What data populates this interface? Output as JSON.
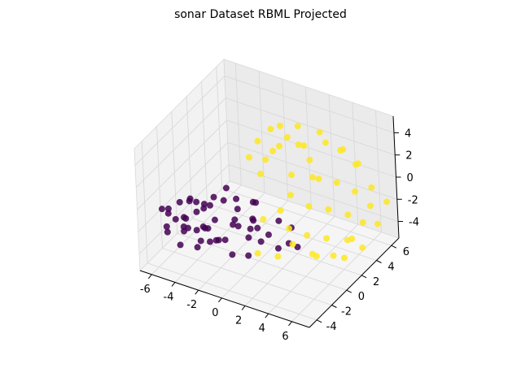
{
  "chart_data": {
    "type": "scatter",
    "projection": "3d",
    "title": "sonar Dataset RBML Projected",
    "xlabel": "",
    "ylabel": "",
    "zlabel": "",
    "xlim": [
      -7,
      7.5
    ],
    "ylim": [
      -5,
      7
    ],
    "zlim": [
      -5.5,
      5.5
    ],
    "x_ticks": [
      "-6",
      "-4",
      "-2",
      "0",
      "2",
      "4",
      "6"
    ],
    "y_ticks": [
      "-4",
      "-2",
      "0",
      "2",
      "4",
      "6"
    ],
    "z_ticks": [
      "-4",
      "-2",
      "0",
      "2",
      "4"
    ],
    "grid": true,
    "colors": {
      "class_0": "#440154",
      "class_1": "#fde725",
      "pane": "#f2f2f2",
      "grid": "#d9d9d9"
    },
    "series": [
      {
        "class": 0,
        "color": "#440154",
        "points": [
          [
            -6.2,
            -3.0,
            -1.0
          ],
          [
            -5.8,
            -2.8,
            -1.4
          ],
          [
            -5.5,
            -3.2,
            -0.6
          ],
          [
            -5.0,
            -2.0,
            -2.0
          ],
          [
            -4.8,
            -1.5,
            -0.8
          ],
          [
            -4.5,
            -2.5,
            -1.6
          ],
          [
            -4.2,
            -3.8,
            -3.0
          ],
          [
            -4.0,
            -1.8,
            -0.4
          ],
          [
            -3.8,
            -2.2,
            -2.6
          ],
          [
            -3.5,
            -0.8,
            -1.2
          ],
          [
            -3.2,
            -3.0,
            -0.2
          ],
          [
            -3.0,
            -1.0,
            -2.2
          ],
          [
            -2.8,
            -2.6,
            -1.8
          ],
          [
            -2.5,
            -0.5,
            -0.6
          ],
          [
            -2.2,
            -1.8,
            -3.2
          ],
          [
            -2.0,
            -3.4,
            -1.0
          ],
          [
            -1.8,
            0.2,
            -1.6
          ],
          [
            -1.5,
            -2.0,
            -2.8
          ],
          [
            -1.2,
            -0.8,
            0.2
          ],
          [
            -1.0,
            -1.4,
            -1.2
          ],
          [
            -0.8,
            0.6,
            -2.4
          ],
          [
            -0.5,
            -2.4,
            -0.8
          ],
          [
            -0.2,
            -0.2,
            -1.8
          ],
          [
            0.0,
            -1.2,
            -2.6
          ],
          [
            -5.2,
            -0.8,
            -1.2
          ],
          [
            -4.6,
            0.0,
            -2.4
          ],
          [
            -3.6,
            -3.6,
            -1.4
          ],
          [
            -2.6,
            -1.6,
            0.4
          ],
          [
            -1.6,
            -3.0,
            -2.2
          ],
          [
            -0.6,
            0.8,
            -1.0
          ],
          [
            0.4,
            -0.6,
            -2.0
          ],
          [
            0.8,
            0.2,
            -3.0
          ],
          [
            1.2,
            -1.4,
            -2.4
          ],
          [
            1.6,
            0.4,
            -1.6
          ],
          [
            2.0,
            -0.4,
            -3.4
          ],
          [
            -6.0,
            -1.6,
            -2.8
          ],
          [
            -5.4,
            -3.6,
            -2.4
          ],
          [
            -4.4,
            -0.2,
            -1.8
          ],
          [
            -3.4,
            -2.8,
            -3.6
          ],
          [
            -2.4,
            -3.8,
            -2.0
          ],
          [
            -1.4,
            -0.4,
            -2.6
          ],
          [
            -0.4,
            -2.8,
            -3.2
          ],
          [
            0.6,
            -1.8,
            -1.2
          ],
          [
            1.0,
            -2.8,
            -2.8
          ],
          [
            -2.9,
            0.5,
            -0.3
          ],
          [
            -3.9,
            -1.2,
            -3.0
          ],
          [
            -4.9,
            -2.6,
            -0.2
          ],
          [
            -1.1,
            1.2,
            -1.4
          ],
          [
            2.4,
            0.8,
            -2.2
          ],
          [
            2.8,
            -0.2,
            -2.8
          ],
          [
            3.0,
            0.6,
            -3.6
          ],
          [
            -6.4,
            -2.2,
            -3.2
          ],
          [
            -5.6,
            -1.2,
            -3.6
          ],
          [
            -4.1,
            -3.4,
            -2.0
          ],
          [
            -3.1,
            -1.6,
            -3.8
          ]
        ]
      },
      {
        "class": 1,
        "color": "#fde725",
        "points": [
          [
            -1.0,
            2.0,
            3.6
          ],
          [
            -0.5,
            3.0,
            4.2
          ],
          [
            0.0,
            2.4,
            2.8
          ],
          [
            0.5,
            3.6,
            3.4
          ],
          [
            1.0,
            1.8,
            4.0
          ],
          [
            1.5,
            4.2,
            2.6
          ],
          [
            2.0,
            2.8,
            3.8
          ],
          [
            2.5,
            3.4,
            2.2
          ],
          [
            3.0,
            4.8,
            3.0
          ],
          [
            3.5,
            2.2,
            1.8
          ],
          [
            4.0,
            5.2,
            2.4
          ],
          [
            4.5,
            3.8,
            0.6
          ],
          [
            5.0,
            5.6,
            1.2
          ],
          [
            5.5,
            4.6,
            -0.4
          ],
          [
            6.0,
            6.0,
            -0.8
          ],
          [
            6.5,
            5.0,
            -1.6
          ],
          [
            2.2,
            1.2,
            0.4
          ],
          [
            3.2,
            2.0,
            -0.8
          ],
          [
            4.2,
            3.0,
            -1.4
          ],
          [
            5.2,
            4.0,
            -2.2
          ],
          [
            1.8,
            0.4,
            -0.6
          ],
          [
            2.6,
            0.2,
            -1.8
          ],
          [
            3.6,
            1.0,
            -2.6
          ],
          [
            4.6,
            2.0,
            -3.2
          ],
          [
            5.6,
            3.2,
            -3.8
          ],
          [
            6.2,
            4.4,
            -2.8
          ],
          [
            6.8,
            5.4,
            -3.4
          ],
          [
            0.8,
            -0.4,
            -1.2
          ],
          [
            3.4,
            -0.6,
            -2.4
          ],
          [
            4.4,
            0.4,
            -3.6
          ],
          [
            5.4,
            1.6,
            -4.2
          ],
          [
            6.4,
            2.6,
            -3.0
          ],
          [
            -0.2,
            1.0,
            1.6
          ],
          [
            1.4,
            2.6,
            1.0
          ],
          [
            2.8,
            4.0,
            0.2
          ],
          [
            0.2,
            3.2,
            4.6
          ],
          [
            1.2,
            4.0,
            4.4
          ],
          [
            2.4,
            5.0,
            3.6
          ],
          [
            3.8,
            5.8,
            2.0
          ],
          [
            4.8,
            6.2,
            0.8
          ],
          [
            -1.4,
            1.4,
            2.4
          ],
          [
            -0.8,
            2.6,
            1.6
          ],
          [
            7.0,
            6.4,
            -2.0
          ],
          [
            6.6,
            3.6,
            -4.4
          ],
          [
            5.8,
            2.4,
            -4.8
          ],
          [
            4.2,
            1.2,
            -4.4
          ],
          [
            2.2,
            -0.8,
            -3.8
          ],
          [
            1.0,
            -1.6,
            -3.4
          ]
        ]
      }
    ]
  }
}
